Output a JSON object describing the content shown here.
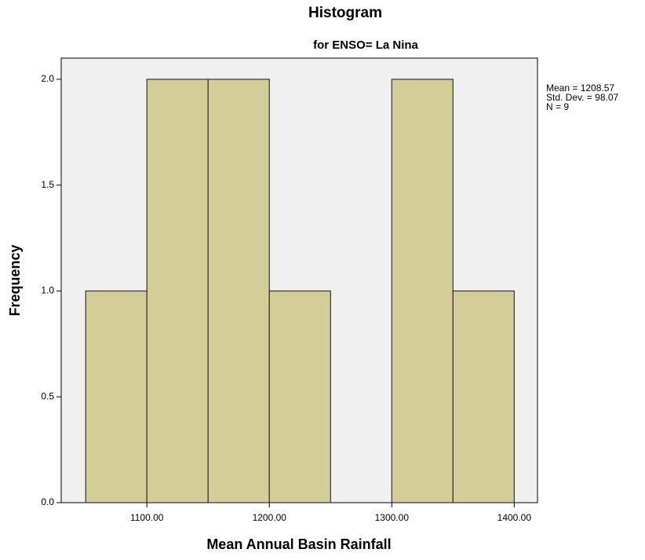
{
  "chart_data": {
    "type": "histogram",
    "title": "Histogram",
    "subtitle": "for ENSO= La Nina",
    "x_label": "Mean Annual Basin Rainfall",
    "y_label": "Frequency",
    "bins": [
      1050,
      1100,
      1150,
      1200,
      1250,
      1300,
      1350,
      1400
    ],
    "values": [
      1,
      2,
      2,
      1,
      0,
      2,
      1
    ],
    "color": "#d3ce97",
    "edge_color": "#333333",
    "background": "#f0f0f0",
    "xlim": [
      1030,
      1419
    ],
    "ylim": [
      0,
      2.1
    ],
    "xticks": [
      {
        "value": 1100,
        "label": "1100.00"
      },
      {
        "value": 1200,
        "label": "1200.00"
      },
      {
        "value": 1300,
        "label": "1300.00"
      },
      {
        "value": 1400,
        "label": "1400.00"
      }
    ],
    "yticks": [
      {
        "value": 0,
        "label": "0.0"
      },
      {
        "value": 0.5,
        "label": "0.5"
      },
      {
        "value": 1,
        "label": "1.0"
      },
      {
        "value": 1.5,
        "label": "1.5"
      },
      {
        "value": 2,
        "label": "2.0"
      }
    ],
    "annotations": [
      "Mean = 1208.57",
      "Std. Dev. = 98.07",
      "N = 9"
    ]
  }
}
